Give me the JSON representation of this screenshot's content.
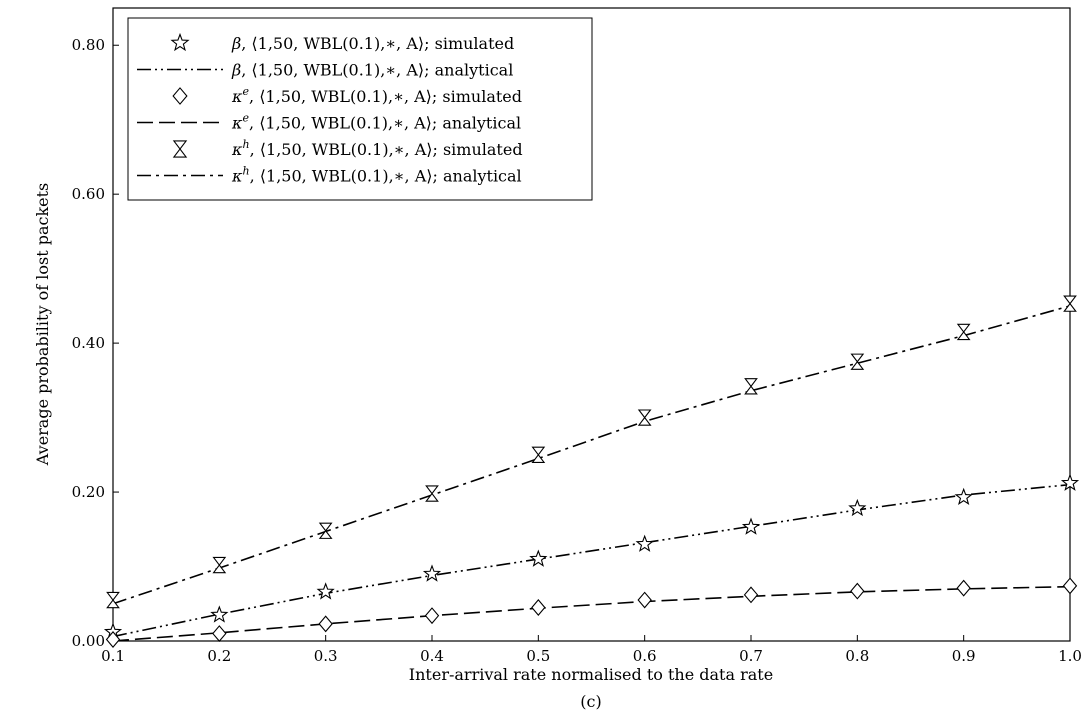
{
  "chart_data": {
    "type": "line",
    "title": "",
    "caption": "(c)",
    "xlabel": "Inter-arrival rate normalised to the data rate",
    "ylabel": "Average probability of lost packets",
    "xlim": [
      0.1,
      1.0
    ],
    "ylim": [
      0.0,
      0.85
    ],
    "x_ticks": [
      0.1,
      0.2,
      0.3,
      0.4,
      0.5,
      0.6,
      0.7,
      0.8,
      0.9,
      1.0
    ],
    "x_tick_labels": [
      "0.1",
      "0.2",
      "0.3",
      "0.4",
      "0.5",
      "0.6",
      "0.7",
      "0.8",
      "0.9",
      "1.0"
    ],
    "y_ticks": [
      0.0,
      0.2,
      0.4,
      0.6,
      0.8
    ],
    "y_tick_labels": [
      "0.00",
      "0.20",
      "0.40",
      "0.60",
      "0.80"
    ],
    "grid": false,
    "legend_position": "top-left",
    "x": [
      0.1,
      0.2,
      0.3,
      0.4,
      0.5,
      0.6,
      0.7,
      0.8,
      0.9,
      1.0
    ],
    "series": [
      {
        "name": "β, ⟨1,50, WBL(0.1),∗, A⟩; simulated",
        "marker": "star",
        "line": "none",
        "values": [
          0.012,
          0.035,
          0.066,
          0.09,
          0.11,
          0.13,
          0.153,
          0.178,
          0.193,
          0.212
        ]
      },
      {
        "name": "β, ⟨1,50, WBL(0.1),∗, A⟩; analytical",
        "marker": "none",
        "line": "dash-dot-dot",
        "values": [
          0.006,
          0.036,
          0.064,
          0.088,
          0.11,
          0.132,
          0.154,
          0.176,
          0.196,
          0.21
        ]
      },
      {
        "name": "κe, ⟨1,50, WBL(0.1),∗, A⟩; simulated",
        "marker": "diamond",
        "line": "none",
        "values": [
          0.002,
          0.01,
          0.023,
          0.034,
          0.045,
          0.055,
          0.062,
          0.067,
          0.071,
          0.074
        ]
      },
      {
        "name": "κe, ⟨1,50, WBL(0.1),∗, A⟩; analytical",
        "marker": "none",
        "line": "dashed",
        "values": [
          0.0,
          0.011,
          0.023,
          0.034,
          0.044,
          0.053,
          0.06,
          0.066,
          0.07,
          0.073
        ]
      },
      {
        "name": "κh, ⟨1,50, WBL(0.1),∗, A⟩; simulated",
        "marker": "hourglass",
        "line": "none",
        "values": [
          0.055,
          0.102,
          0.148,
          0.198,
          0.25,
          0.3,
          0.342,
          0.375,
          0.415,
          0.453
        ]
      },
      {
        "name": "κh, ⟨1,50, WBL(0.1),∗, A⟩; analytical",
        "marker": "none",
        "line": "dash-dot",
        "values": [
          0.05,
          0.098,
          0.147,
          0.196,
          0.245,
          0.295,
          0.336,
          0.373,
          0.41,
          0.45
        ]
      }
    ],
    "legend": [
      {
        "sym": "β",
        "sup": "",
        "rest": ", ⟨1,50, WBL(0.1),∗, A⟩; simulated"
      },
      {
        "sym": "β",
        "sup": "",
        "rest": ", ⟨1,50, WBL(0.1),∗, A⟩; analytical"
      },
      {
        "sym": "κ",
        "sup": "e",
        "rest": ", ⟨1,50, WBL(0.1),∗, A⟩; simulated"
      },
      {
        "sym": "κ",
        "sup": "e",
        "rest": ", ⟨1,50, WBL(0.1),∗, A⟩; analytical"
      },
      {
        "sym": "κ",
        "sup": "h",
        "rest": ", ⟨1,50, WBL(0.1),∗, A⟩; simulated"
      },
      {
        "sym": "κ",
        "sup": "h",
        "rest": ", ⟨1,50, WBL(0.1),∗, A⟩; analytical"
      }
    ]
  }
}
